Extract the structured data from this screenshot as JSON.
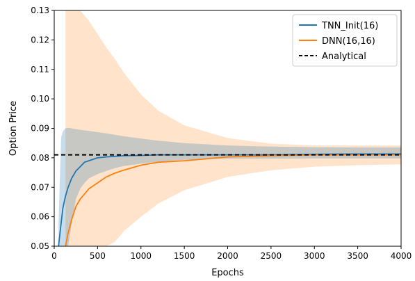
{
  "chart_data": {
    "type": "line",
    "xlabel": "Epochs",
    "ylabel": "Option Price",
    "xlim": [
      0,
      4000
    ],
    "ylim": [
      0.05,
      0.13
    ],
    "xticks": [
      0,
      500,
      1000,
      1500,
      2000,
      2500,
      3000,
      3500,
      4000
    ],
    "xtick_labels": [
      "0",
      "500",
      "1000",
      "1500",
      "2000",
      "2500",
      "3000",
      "3500",
      "4000"
    ],
    "yticks": [
      0.05,
      0.06,
      0.07,
      0.08,
      0.09,
      0.1,
      0.11,
      0.12,
      0.13
    ],
    "ytick_labels": [
      "0.05",
      "0.06",
      "0.07",
      "0.08",
      "0.09",
      "0.10",
      "0.11",
      "0.12",
      "0.13"
    ],
    "legend_position": "top-right",
    "grid": false,
    "series": [
      {
        "name": "TNN_Init(16)",
        "color": "#1f77b4",
        "style": "solid",
        "x": [
          50,
          80,
          100,
          130,
          160,
          200,
          250,
          300,
          350,
          400,
          500,
          600,
          700,
          800,
          1000,
          1200,
          1500,
          2000,
          2500,
          3000,
          3500,
          4000
        ],
        "y": [
          0.05,
          0.058,
          0.063,
          0.067,
          0.07,
          0.073,
          0.0755,
          0.077,
          0.0785,
          0.079,
          0.08,
          0.0803,
          0.0805,
          0.0807,
          0.0808,
          0.081,
          0.081,
          0.081,
          0.081,
          0.0812,
          0.0813,
          0.0813
        ],
        "band_lower": [
          0.05,
          0.05,
          0.05,
          0.05,
          0.05,
          0.0575,
          0.066,
          0.0695,
          0.0715,
          0.073,
          0.0745,
          0.0755,
          0.0765,
          0.0772,
          0.078,
          0.0787,
          0.0793,
          0.0797,
          0.0797,
          0.0798,
          0.0798,
          0.0798
        ],
        "band_upper": [
          0.058,
          0.087,
          0.089,
          0.09,
          0.0902,
          0.09,
          0.0897,
          0.0895,
          0.0893,
          0.0891,
          0.0887,
          0.0883,
          0.0878,
          0.0873,
          0.0865,
          0.0858,
          0.085,
          0.0842,
          0.0838,
          0.0836,
          0.0835,
          0.0835
        ]
      },
      {
        "name": "DNN(16,16)",
        "color": "#ff7f0e",
        "style": "solid",
        "x": [
          130,
          160,
          200,
          250,
          300,
          400,
          500,
          600,
          700,
          800,
          1000,
          1200,
          1500,
          2000,
          2500,
          3000,
          3500,
          4000
        ],
        "y": [
          0.05,
          0.0545,
          0.059,
          0.0635,
          0.066,
          0.0695,
          0.0715,
          0.0735,
          0.0748,
          0.0758,
          0.0775,
          0.0785,
          0.079,
          0.0803,
          0.0807,
          0.081,
          0.081,
          0.081
        ],
        "band_lower": [
          0.05,
          0.05,
          0.05,
          0.05,
          0.05,
          0.05,
          0.05,
          0.05,
          0.0515,
          0.055,
          0.06,
          0.0645,
          0.069,
          0.0735,
          0.0758,
          0.077,
          0.0775,
          0.0778
        ],
        "band_upper": [
          0.13,
          0.13,
          0.13,
          0.13,
          0.13,
          0.1265,
          0.122,
          0.1175,
          0.1135,
          0.109,
          0.1015,
          0.096,
          0.091,
          0.0867,
          0.0848,
          0.0842,
          0.0842,
          0.0842
        ]
      },
      {
        "name": "Analytical",
        "color": "#000000",
        "style": "dashed",
        "x": [
          0,
          4000
        ],
        "y": [
          0.081,
          0.081
        ]
      }
    ]
  }
}
